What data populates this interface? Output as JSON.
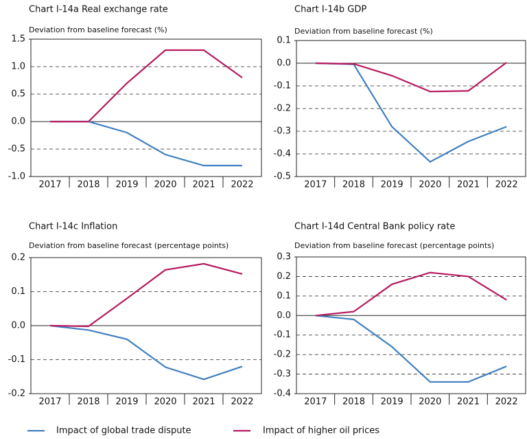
{
  "chart_data": [
    {
      "type": "line",
      "title": "Chart I-14a Real exchange rate",
      "subtitle": "Deviation from baseline forecast (%)",
      "categories": [
        "2017",
        "2018",
        "2019",
        "2020",
        "2021",
        "2022"
      ],
      "series": [
        {
          "values": [
            0,
            0,
            -0.2,
            -0.6,
            -0.8,
            -0.8
          ]
        },
        {
          "values": [
            0,
            0,
            0.7,
            1.3,
            1.3,
            0.8
          ]
        }
      ],
      "ylim": [
        -1,
        1.5
      ],
      "yticks": [
        {
          "value": -1,
          "label": "-1.0"
        },
        -0.5,
        {
          "value": 0,
          "label": "0.0"
        },
        0.5,
        {
          "value": 1,
          "label": "1.0"
        },
        1.5
      ],
      "grid": true
    },
    {
      "type": "line",
      "title": "Chart I-14b GDP",
      "subtitle": "Deviation from baseline forecast (%)",
      "categories": [
        "2017",
        "2018",
        "2019",
        "2020",
        "2021",
        "2022"
      ],
      "series": [
        {
          "values": [
            0,
            -0.005,
            -0.28,
            -0.435,
            -0.345,
            -0.28
          ]
        },
        {
          "values": [
            0,
            -0.003,
            -0.055,
            -0.125,
            -0.122,
            0.003
          ]
        }
      ],
      "ylim": [
        -0.5,
        0.1
      ],
      "yticks": [
        -0.5,
        -0.4,
        -0.3,
        -0.2,
        -0.1,
        {
          "value": 0,
          "label": "0.0"
        },
        0.1
      ],
      "grid": true
    },
    {
      "type": "line",
      "title": "Chart I-14c Inflation",
      "subtitle": "Deviation from baseline forecast (percentage points)",
      "categories": [
        "2017",
        "2018",
        "2019",
        "2020",
        "2021",
        "2022"
      ],
      "series": [
        {
          "values": [
            0,
            -0.013,
            -0.04,
            -0.122,
            -0.158,
            -0.12
          ]
        },
        {
          "values": [
            0,
            -0.002,
            0.08,
            0.164,
            0.182,
            0.152
          ]
        }
      ],
      "ylim": [
        -0.2,
        0.2
      ],
      "yticks": [
        -0.2,
        -0.1,
        {
          "value": 0,
          "label": "0.0"
        },
        0.1,
        0.2
      ],
      "grid": true
    },
    {
      "type": "line",
      "title": "Chart I-14d Central Bank policy rate",
      "subtitle": "Deviation from baseline forecast (percentage points)",
      "categories": [
        "2017",
        "2018",
        "2019",
        "2020",
        "2021",
        "2022"
      ],
      "series": [
        {
          "values": [
            0,
            -0.02,
            -0.16,
            -0.34,
            -0.34,
            -0.26
          ]
        },
        {
          "values": [
            0,
            0.02,
            0.16,
            0.22,
            0.2,
            0.08
          ]
        }
      ],
      "ylim": [
        -0.4,
        0.3
      ],
      "yticks": [
        -0.4,
        -0.3,
        -0.2,
        -0.1,
        {
          "value": 0,
          "label": "0.0"
        },
        0.1,
        0.2,
        0.3
      ],
      "grid": true
    }
  ],
  "legend": [
    {
      "name": "Impact of global trade dispute",
      "color": "#3f7fbf"
    },
    {
      "name": "Impact of higher oil prices",
      "color": "#b5195e"
    }
  ]
}
